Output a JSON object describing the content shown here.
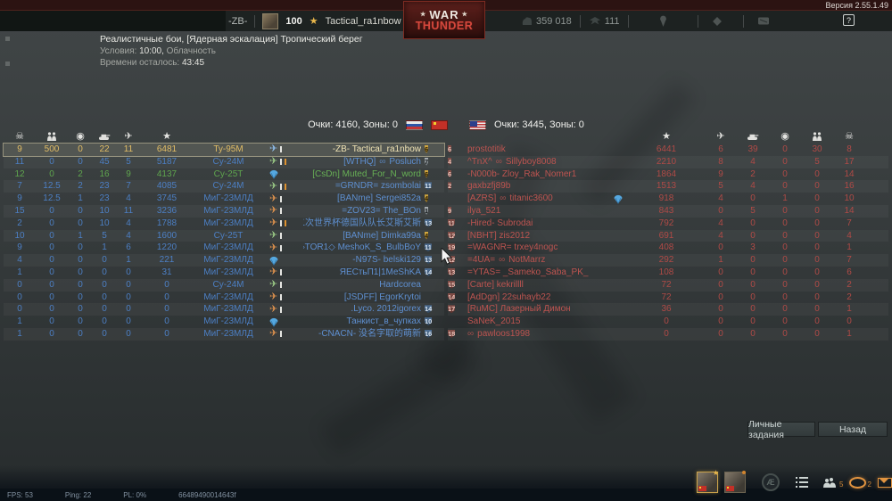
{
  "version": "Версия 2.55.1.49",
  "topbar": {
    "clan_tag": "-ZB-",
    "player_level": "100",
    "level_star": "★",
    "player_name": "Tactical_ra1nbow",
    "logo_top": "WAR",
    "logo_star": "★",
    "logo_bottom": "THUNDER",
    "silver_lions": "359 018",
    "golden_eagles": "111",
    "help_label": "?"
  },
  "match_info": {
    "line1": "Реалистичные бои, [Ядерная эскалация] Тропический берег",
    "line2_label": "Условия: ",
    "line2_strong": "10:00,",
    "line2_tail": " Облачность",
    "line3_label": "Времени осталось: ",
    "line3_value": "43:45"
  },
  "score_header": {
    "left_text": "Очки: 4160, Зоны: 0",
    "right_text": "Очки: 3445, Зоны: 0"
  },
  "left_team": {
    "columns": [
      "deaths",
      "troops",
      "assists",
      "ground",
      "air",
      "score"
    ],
    "rows": [
      {
        "stats": [
          "9",
          "500",
          "0",
          "22",
          "11",
          "6481"
        ],
        "vehicle": "Ту-95М",
        "vicon": "plane-blue",
        "marks": [
          "white"
        ],
        "name_parts": [
          {
            "t": "-ZB- Tactical_ra1nbow"
          }
        ],
        "badge": "6",
        "badge_color": "gold",
        "row": "self"
      },
      {
        "stats": [
          "11",
          "0",
          "0",
          "45",
          "5",
          "5187"
        ],
        "vehicle": "Су-24М",
        "vicon": "plane-green",
        "marks": [
          "white",
          "orange"
        ],
        "name_parts": [
          {
            "t": "[WTHQ]"
          },
          {
            "i": "glasses"
          },
          {
            "t": "Posluch"
          }
        ],
        "badge": "7",
        "badge_color": "gray",
        "row": "blue"
      },
      {
        "stats": [
          "12",
          "0",
          "2",
          "16",
          "9",
          "4137"
        ],
        "vehicle": "Су-25Т",
        "vicon": "parachute",
        "marks": [],
        "name_parts": [
          {
            "t": "[CsDn] Muted_For_N_word"
          }
        ],
        "badge": "6",
        "badge_color": "gold",
        "row": "green"
      },
      {
        "stats": [
          "7",
          "12.5",
          "2",
          "23",
          "7",
          "4085"
        ],
        "vehicle": "Су-24М",
        "vicon": "plane-green",
        "marks": [
          "white",
          "orange"
        ],
        "name_parts": [
          {
            "t": "=GRNDR= zsombolai"
          }
        ],
        "badge": "11",
        "badge_color": "blue",
        "row": "blue"
      },
      {
        "stats": [
          "9",
          "12.5",
          "1",
          "23",
          "4",
          "3745"
        ],
        "vehicle": "МиГ-23МЛД",
        "vicon": "plane-orange",
        "marks": [
          "white"
        ],
        "name_parts": [
          {
            "t": "[BANme] Sergei852a"
          }
        ],
        "badge": "4",
        "badge_color": "gold",
        "row": "blue"
      },
      {
        "stats": [
          "15",
          "0",
          "0",
          "10",
          "11",
          "3236"
        ],
        "vehicle": "МиГ-23МЛД",
        "vicon": "plane-orange",
        "marks": [
          "white"
        ],
        "name_parts": [
          {
            "t": "=ZOV23= The_BOn"
          }
        ],
        "badge": "1",
        "badge_color": "gray",
        "row": "blue"
      },
      {
        "stats": [
          "2",
          "0",
          "0",
          "10",
          "4",
          "1788"
        ],
        "vehicle": "МиГ-23МЛД",
        "vicon": "plane-orange",
        "marks": [
          "white",
          "orange"
        ],
        "name_parts": [
          {
            "t": "第二次世界杯德国队队长艾斯艾斯"
          }
        ],
        "badge": "13",
        "badge_color": "blue",
        "row": "blue"
      },
      {
        "stats": [
          "10",
          "0",
          "1",
          "5",
          "4",
          "1600"
        ],
        "vehicle": "Су-25Т",
        "vicon": "plane-green",
        "marks": [
          "white"
        ],
        "name_parts": [
          {
            "t": "[BANme] Dimka99a"
          }
        ],
        "badge": "4",
        "badge_color": "gold",
        "row": "blue"
      },
      {
        "stats": [
          "9",
          "0",
          "0",
          "1",
          "6",
          "1220"
        ],
        "vehicle": "МиГ-23МЛД",
        "vicon": "plane-orange",
        "marks": [
          "white"
        ],
        "name_parts": [
          {
            "t": "◇TOR1◇ MeshoK_S_BulbBoY"
          }
        ],
        "badge": "11",
        "badge_color": "blue",
        "row": "blue"
      },
      {
        "stats": [
          "4",
          "0",
          "0",
          "0",
          "1",
          "221"
        ],
        "vehicle": "МиГ-23МЛД",
        "vicon": "parachute",
        "marks": [],
        "name_parts": [
          {
            "t": "-N97S- belski129"
          }
        ],
        "badge": "13",
        "badge_color": "blue",
        "row": "blue"
      },
      {
        "stats": [
          "1",
          "0",
          "0",
          "0",
          "0",
          "31"
        ],
        "vehicle": "МиГ-23МЛД",
        "vicon": "plane-orange",
        "marks": [
          "white"
        ],
        "name_parts": [
          {
            "t": "ЯЕСтьП1|1MeShKA"
          }
        ],
        "badge": "14",
        "badge_color": "blue",
        "row": "blue"
      },
      {
        "stats": [
          "0",
          "0",
          "0",
          "0",
          "0",
          "0"
        ],
        "vehicle": "Су-24М",
        "vicon": "plane-green",
        "marks": [
          "white"
        ],
        "name_parts": [
          {
            "t": "Hardcorea"
          }
        ],
        "badge": "",
        "badge_color": "",
        "row": "blue"
      },
      {
        "stats": [
          "0",
          "0",
          "0",
          "0",
          "0",
          "0"
        ],
        "vehicle": "МиГ-23МЛД",
        "vicon": "plane-orange",
        "marks": [
          "white"
        ],
        "name_parts": [
          {
            "t": "[JSDFF] EgorKrytoi"
          }
        ],
        "badge": "",
        "badge_color": "",
        "row": "blue"
      },
      {
        "stats": [
          "0",
          "0",
          "0",
          "0",
          "0",
          "0"
        ],
        "vehicle": "МиГ-23МЛД",
        "vicon": "plane-orange",
        "marks": [
          "white"
        ],
        "name_parts": [
          {
            "t": ".Lyco. 2012igorex"
          }
        ],
        "badge": "14",
        "badge_color": "blue",
        "row": "blue"
      },
      {
        "stats": [
          "1",
          "0",
          "0",
          "0",
          "0",
          "0"
        ],
        "vehicle": "МиГ-23МЛД",
        "vicon": "parachute",
        "marks": [],
        "name_parts": [
          {
            "t": "Танкист_в_чупках"
          }
        ],
        "badge": "10",
        "badge_color": "blue",
        "row": "blue"
      },
      {
        "stats": [
          "1",
          "0",
          "0",
          "0",
          "0",
          "0"
        ],
        "vehicle": "МиГ-23МЛД",
        "vicon": "plane-orange",
        "marks": [
          "white"
        ],
        "name_parts": [
          {
            "t": "-CNACN- 没名字取的萌新"
          }
        ],
        "badge": "16",
        "badge_color": "blue",
        "row": "blue"
      }
    ]
  },
  "right_team": {
    "columns": [
      "score",
      "air",
      "ground",
      "assists",
      "troops",
      "deaths"
    ],
    "rows": [
      {
        "badge": "6",
        "badge_color": "red",
        "name_parts": [
          {
            "t": "prostotitik"
          }
        ],
        "chute": false,
        "stats": [
          "6441",
          "6",
          "39",
          "0",
          "30",
          "8"
        ]
      },
      {
        "badge": "4",
        "badge_color": "red",
        "name_parts": [
          {
            "t": "^TnX^"
          },
          {
            "i": "glasses"
          },
          {
            "t": "Sillyboy8008"
          }
        ],
        "chute": false,
        "stats": [
          "2210",
          "8",
          "4",
          "0",
          "5",
          "17"
        ]
      },
      {
        "badge": "6",
        "badge_color": "red",
        "name_parts": [
          {
            "t": "-N000b- Zloy_Rak_Nomer1"
          }
        ],
        "chute": false,
        "stats": [
          "1864",
          "9",
          "2",
          "0",
          "0",
          "14"
        ]
      },
      {
        "badge": "2",
        "badge_color": "red",
        "name_parts": [
          {
            "t": "gaxbzfj89b"
          }
        ],
        "chute": false,
        "stats": [
          "1513",
          "5",
          "4",
          "0",
          "0",
          "16"
        ]
      },
      {
        "badge": "",
        "badge_color": "",
        "name_parts": [
          {
            "t": "[AZRS]"
          },
          {
            "i": "glasses"
          },
          {
            "t": "titanic3600"
          }
        ],
        "chute": true,
        "stats": [
          "918",
          "4",
          "0",
          "1",
          "0",
          "10"
        ]
      },
      {
        "badge": "9",
        "badge_color": "red",
        "name_parts": [
          {
            "t": "ilya_521"
          }
        ],
        "chute": false,
        "stats": [
          "843",
          "0",
          "5",
          "0",
          "0",
          "14"
        ]
      },
      {
        "badge": "11",
        "badge_color": "red",
        "name_parts": [
          {
            "t": "-Hired- Subrodai"
          }
        ],
        "chute": false,
        "stats": [
          "792",
          "4",
          "0",
          "0",
          "0",
          "7"
        ]
      },
      {
        "badge": "12",
        "badge_color": "red",
        "name_parts": [
          {
            "t": "[NBHT] zis2012"
          }
        ],
        "chute": false,
        "stats": [
          "691",
          "4",
          "0",
          "0",
          "0",
          "4"
        ]
      },
      {
        "badge": "19",
        "badge_color": "red",
        "name_parts": [
          {
            "t": "=WAGNR= trxey4nogc"
          }
        ],
        "chute": false,
        "stats": [
          "408",
          "0",
          "3",
          "0",
          "0",
          "1"
        ]
      },
      {
        "badge": "12",
        "badge_color": "red",
        "name_parts": [
          {
            "t": "=4UA="
          },
          {
            "i": "glasses"
          },
          {
            "t": "NotMarrz"
          }
        ],
        "chute": false,
        "stats": [
          "292",
          "1",
          "0",
          "0",
          "0",
          "7"
        ]
      },
      {
        "badge": "13",
        "badge_color": "red",
        "name_parts": [
          {
            "t": "=YTAS= _Sameko_Saba_PK_"
          }
        ],
        "chute": false,
        "stats": [
          "108",
          "0",
          "0",
          "0",
          "0",
          "6"
        ]
      },
      {
        "badge": "15",
        "badge_color": "red",
        "name_parts": [
          {
            "t": "[Carte] kekrillll"
          }
        ],
        "chute": false,
        "stats": [
          "72",
          "0",
          "0",
          "0",
          "0",
          "2"
        ]
      },
      {
        "badge": "14",
        "badge_color": "red",
        "name_parts": [
          {
            "t": "[AdDgn] 22suhayb22"
          }
        ],
        "chute": false,
        "stats": [
          "72",
          "0",
          "0",
          "0",
          "0",
          "2"
        ]
      },
      {
        "badge": "17",
        "badge_color": "red",
        "name_parts": [
          {
            "t": "[RuMC] Лазерный Димон"
          }
        ],
        "chute": false,
        "stats": [
          "36",
          "0",
          "0",
          "0",
          "0",
          "1"
        ]
      },
      {
        "badge": "",
        "badge_color": "",
        "name_parts": [
          {
            "t": "SaNeK_2015"
          }
        ],
        "chute": false,
        "stats": [
          "0",
          "0",
          "0",
          "0",
          "0",
          "0"
        ]
      },
      {
        "badge": "18",
        "badge_color": "red",
        "name_parts": [
          {
            "i": "glasses"
          },
          {
            "t": "pawloos1998"
          }
        ],
        "chute": false,
        "stats": [
          "0",
          "0",
          "0",
          "0",
          "0",
          "1"
        ]
      }
    ]
  },
  "buttons": {
    "personal_tasks": "Личные задания",
    "back": "Назад"
  },
  "statusbar": {
    "fps": "FPS: 53",
    "ping": "Ping: 22",
    "pl": "PL: 0%",
    "session": "66489490014643f",
    "squad_count": "5",
    "notify_count": "2"
  }
}
